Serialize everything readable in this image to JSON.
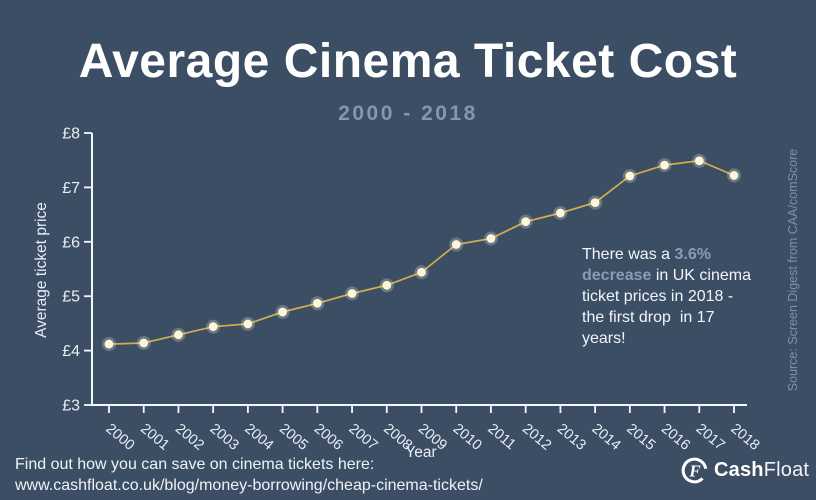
{
  "page": {
    "background_color": "#3b4e64"
  },
  "header": {
    "title": "Average Cinema Ticket Cost",
    "subtitle": "2000 - 2018"
  },
  "chart_data": {
    "type": "line",
    "title": "Average Cinema Ticket Cost",
    "subtitle": "2000 - 2018",
    "xlabel": "Year",
    "ylabel": "Average ticket price",
    "ylim": [
      3,
      8
    ],
    "y_ticks": [
      3,
      4,
      5,
      6,
      7,
      8
    ],
    "y_tick_prefix": "£",
    "grid": false,
    "legend": false,
    "categories": [
      "2000",
      "2001",
      "2002",
      "2003",
      "2004",
      "2005",
      "2006",
      "2007",
      "2008",
      "2009",
      "2010",
      "2011",
      "2012",
      "2013",
      "2014",
      "2015",
      "2016",
      "2017",
      "2018"
    ],
    "values": [
      4.12,
      4.14,
      4.29,
      4.44,
      4.49,
      4.71,
      4.87,
      5.05,
      5.2,
      5.44,
      5.95,
      6.06,
      6.37,
      6.53,
      6.72,
      7.21,
      7.41,
      7.49,
      7.22
    ],
    "line_color": "#d2ae4d",
    "point_color": "#fcf7d9",
    "axis_color": "#f4f7fa",
    "tick_label_color": "#e9eef5"
  },
  "annotation": {
    "prefix": "There was a ",
    "highlight": "3.6%\ndecrease",
    "suffix": " in UK cinema\nticket prices in 2018 -\nthe first drop  in 17\nyears!",
    "highlight_color": "#8b9ab8"
  },
  "source": "Source: Screen Digest from CAA/comScore",
  "footer": {
    "line1": "Find out how you can save on cinema tickets here:",
    "line2": "www.cashfloat.co.uk/blog/money-borrowing/cheap-cinema-tickets/"
  },
  "logo": {
    "icon": "cashfloat-f-icon",
    "text_bold": "Cash",
    "text_regular": "Float"
  }
}
